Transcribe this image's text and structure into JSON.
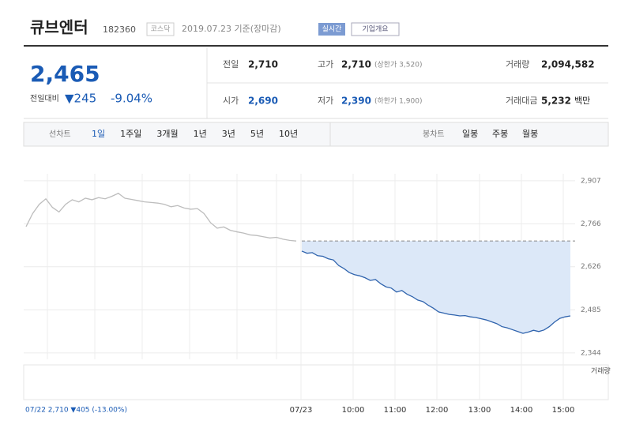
{
  "header": {
    "name": "큐브엔터",
    "code": "182360",
    "market": "코스닥",
    "date": "2019.07.23 기준(장마감)",
    "buttons": [
      "실시간",
      "기업개요"
    ]
  },
  "price": {
    "current": "2,465",
    "change_label": "전일대비",
    "change": "▼245",
    "change_pct": "-9.04%"
  },
  "summary": {
    "rows": [
      [
        {
          "label": "전일",
          "value": "2,710"
        },
        {
          "label": "고가",
          "value": "2,710",
          "note": "(상한가 3,520)"
        },
        {
          "label": "거래량",
          "value": "2,094,582"
        }
      ],
      [
        {
          "label": "시가",
          "value": "2,690"
        },
        {
          "label": "저가",
          "value": "2,390",
          "note": "(하한가 1,900)"
        },
        {
          "label": "거래대금",
          "value": "5,232",
          "note": "백만"
        }
      ]
    ]
  },
  "tabs": {
    "line_label": "선차트",
    "line": [
      "1일",
      "1주일",
      "3개월",
      "1년",
      "3년",
      "5년",
      "10년"
    ],
    "candle_label": "봉차트",
    "candle": [
      "일봉",
      "주봉",
      "월봉"
    ]
  },
  "chart_data": {
    "type": "line",
    "ylim": [
      2323,
      2930
    ],
    "yticks": [
      {
        "value": 2907,
        "label": "2,907"
      },
      {
        "value": 2766,
        "label": "2,766"
      },
      {
        "value": 2626,
        "label": "2,626"
      },
      {
        "value": 2485,
        "label": "2,485"
      },
      {
        "value": 2344,
        "label": "2,344"
      }
    ],
    "xlabels": [
      "07/23",
      "10:00",
      "11:00",
      "12:00",
      "13:00",
      "14:00",
      "15:00"
    ],
    "baseline": 2710,
    "volume_label": "거래량",
    "footer": "07/22 2,710 ▼405 (-13.00%)",
    "series": [
      {
        "color": "#bdbdbd",
        "values": [
          2757,
          2800,
          2830,
          2848,
          2820,
          2805,
          2830,
          2845,
          2838,
          2850,
          2845,
          2852,
          2848,
          2856,
          2866,
          2850,
          2846,
          2842,
          2838,
          2836,
          2834,
          2830,
          2822,
          2826,
          2818,
          2814,
          2816,
          2800,
          2770,
          2752,
          2756,
          2745,
          2740,
          2736,
          2730,
          2728,
          2724,
          2720,
          2722,
          2716,
          2712,
          2710
        ]
      },
      {
        "color": "#2f63ad",
        "fill": "#dce8f8",
        "values": [
          2677,
          2670,
          2672,
          2662,
          2660,
          2652,
          2648,
          2630,
          2620,
          2607,
          2600,
          2596,
          2590,
          2581,
          2584,
          2570,
          2560,
          2556,
          2543,
          2548,
          2536,
          2528,
          2517,
          2512,
          2500,
          2490,
          2478,
          2474,
          2470,
          2468,
          2465,
          2466,
          2462,
          2460,
          2456,
          2452,
          2446,
          2440,
          2430,
          2426,
          2420,
          2414,
          2408,
          2412,
          2418,
          2414,
          2419,
          2430,
          2445,
          2457,
          2462,
          2465
        ]
      }
    ]
  }
}
